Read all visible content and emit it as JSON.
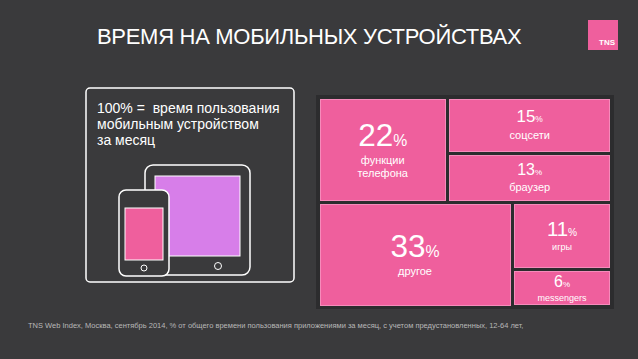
{
  "chart_data": {
    "type": "treemap",
    "title": "ВРЕМЯ НА МОБИЛЬНЫХ УСТРОЙСТВАХ",
    "subtitle": [
      "100% =  время пользования",
      "мобильным устройством",
      "за месяц"
    ],
    "source": "TNS Web Index, Москва, сентябрь 2014, % от общего времени пользования приложениями за месяц, с учетом предустановленных, 12-64 лет,",
    "logo": "TNS",
    "categories": [
      "функции телефона",
      "соцсети",
      "браузер",
      "другое",
      "игры",
      "messengers"
    ],
    "values": [
      22,
      15,
      13,
      33,
      11,
      6
    ],
    "value_labels": [
      "22%",
      "15%",
      "13%",
      "33%",
      "11%",
      "6%"
    ],
    "color": "#ef5f9d",
    "data_labels": true
  }
}
